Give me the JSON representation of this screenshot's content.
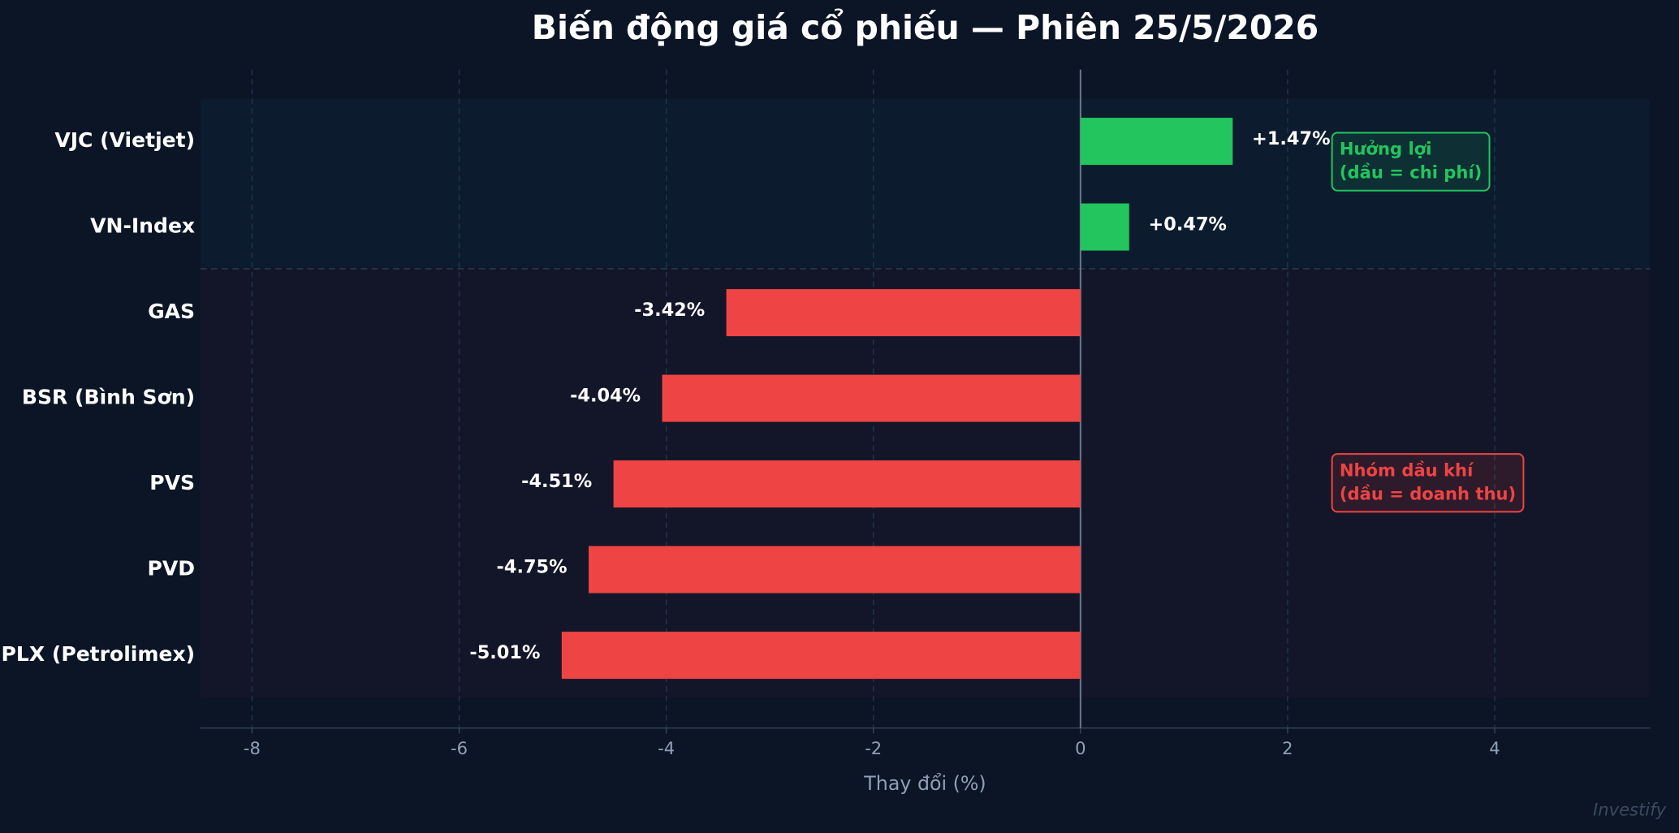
{
  "chart_data": {
    "type": "barh",
    "title": "Biến động giá cổ phiếu — Phiên 25/5/2026",
    "xlabel": "Thay đổi (%)",
    "categories": [
      "VJC (Vietjet)",
      "VN-Index",
      "GAS",
      "BSR (Bình Sơn)",
      "PVS",
      "PVD",
      "PLX (Petrolimex)"
    ],
    "values": [
      1.47,
      0.47,
      -3.42,
      -4.04,
      -4.51,
      -4.75,
      -5.01
    ],
    "value_labels": [
      "+1.47%",
      "+0.47%",
      "-3.42%",
      "-4.04%",
      "-4.51%",
      "-4.75%",
      "-5.01%"
    ],
    "colors": [
      "#22c55e",
      "#22c55e",
      "#ef4444",
      "#ef4444",
      "#ef4444",
      "#ef4444",
      "#ef4444"
    ],
    "xlim": [
      -8.5,
      5.5
    ],
    "xticks": [
      -8,
      -6,
      -4,
      -2,
      0,
      2,
      4
    ],
    "grid": true,
    "annotations": [
      {
        "lines": [
          "Hưởng lợi",
          "(dầu = chi phí)"
        ],
        "color": "#22c55e"
      },
      {
        "lines": [
          "Nhóm dầu khí",
          "(dầu = doanh thu)"
        ],
        "color": "#ef4444"
      }
    ],
    "watermark": "Investify"
  }
}
